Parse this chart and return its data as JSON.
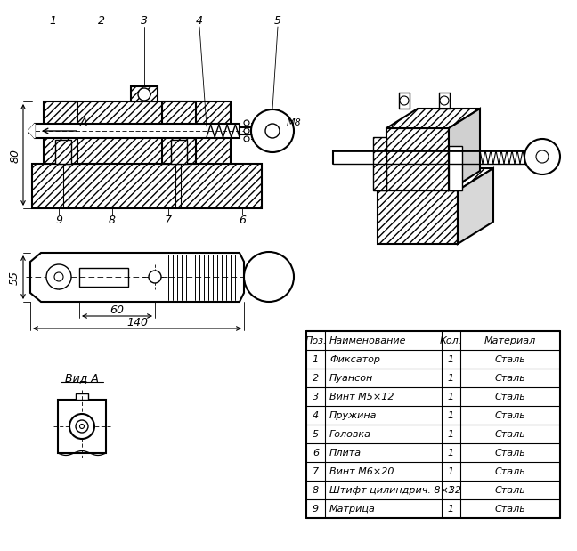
{
  "bg_color": "#ffffff",
  "line_color": "#000000",
  "table_headers": [
    "Поз.",
    "Наименование",
    "Кол.",
    "Материал"
  ],
  "table_rows": [
    [
      "1",
      "Фиксатор",
      "1",
      "Сталь"
    ],
    [
      "2",
      "Пуансон",
      "1",
      "Сталь"
    ],
    [
      "3",
      "Винт М5×12",
      "1",
      "Сталь"
    ],
    [
      "4",
      "Пружина",
      "1",
      "Сталь"
    ],
    [
      "5",
      "Головка",
      "1",
      "Сталь"
    ],
    [
      "6",
      "Плита",
      "1",
      "Сталь"
    ],
    [
      "7",
      "Винт М6×20",
      "1",
      "Сталь"
    ],
    [
      "8",
      "Штифт цилиндрич. 8×32",
      "1",
      "Сталь"
    ],
    [
      "9",
      "Матрица",
      "1",
      "Сталь"
    ]
  ],
  "dim_80": "80",
  "dim_55": "55",
  "dim_60": "60",
  "dim_140": "140",
  "dim_m8": "M8",
  "label_vidA": "Вид A"
}
